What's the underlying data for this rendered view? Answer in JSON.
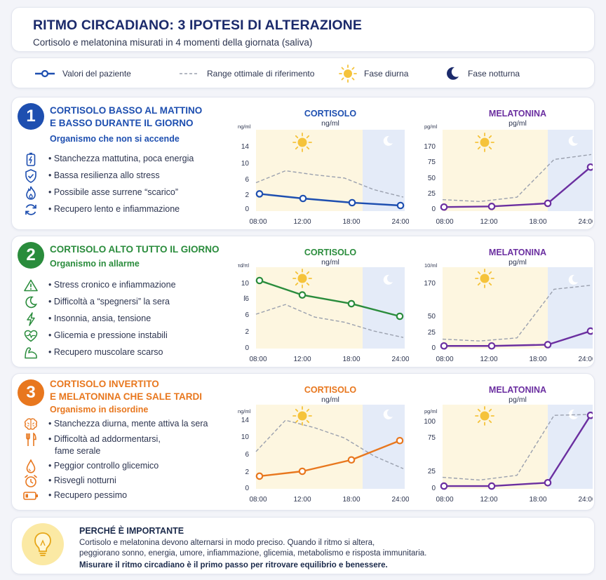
{
  "header": {
    "title": "RITMO CIRCADIANO: 3 IPOTESI DI ALTERAZIONE",
    "subtitle": "Cortisolo e melatonina misurati in 4 momenti della giornata (saliva)"
  },
  "legend": {
    "patient": "Valori del paziente",
    "reference": "Range ottimale di riferimento",
    "day": "Fase diurna",
    "night": "Fase notturna"
  },
  "colors": {
    "blue": "#1e4fb0",
    "green": "#2a8c3c",
    "orange": "#e8771e",
    "purple": "#6b2fa0",
    "day_bg": "#fdf6e0",
    "night_bg": "#e4ebf8",
    "reference": "#9aa0ae"
  },
  "sections": [
    {
      "number": "1",
      "title_lines": [
        "CORTISOLO BASSO AL MATTINO",
        "E BASSO DURANTE IL GIORNO"
      ],
      "subtitle": "Organismo che non si accende",
      "accent": "#1e4fb0",
      "bullets": [
        {
          "icon": "battery-icon",
          "text": "Stanchezza mattutina, poca energia"
        },
        {
          "icon": "shield-icon",
          "text": "Bassa resilienza allo stress"
        },
        {
          "icon": "flame-icon",
          "text": "Possibile asse surrene “scarico”"
        },
        {
          "icon": "recycle-icon",
          "text": "Recupero lento e infiammazione"
        }
      ]
    },
    {
      "number": "2",
      "title_lines": [
        "CORTISOLO ALTO TUTTO IL GIORNO"
      ],
      "subtitle": "Organismo in allarme",
      "accent": "#2a8c3c",
      "bullets": [
        {
          "icon": "warning-icon",
          "text": "Stress cronico e infiammazione"
        },
        {
          "icon": "moon-icon",
          "text": "Difficoltà a “spegnersi” la sera"
        },
        {
          "icon": "bolt-icon",
          "text": "Insonnia, ansia, tensione"
        },
        {
          "icon": "heart-pulse-icon",
          "text": "Glicemia e pressione instabili"
        },
        {
          "icon": "muscle-icon",
          "text": "Recupero muscolare scarso"
        }
      ]
    },
    {
      "number": "3",
      "title_lines": [
        "CORTISOLO INVERTITO",
        "E MELATONINA CHE SALE TARDI"
      ],
      "subtitle": "Organismo in disordine",
      "accent": "#e8771e",
      "bullets": [
        {
          "icon": "brain-icon",
          "text": "Stanchezza diurna, mente attiva la sera"
        },
        {
          "icon": "cutlery-icon",
          "text": "Difficoltà ad addormentarsi,",
          "text2": "fame serale"
        },
        {
          "icon": "drop-icon",
          "text": "Peggior controllo glicemico"
        },
        {
          "icon": "alarm-clock-icon",
          "text": "Risvegli notturni"
        },
        {
          "icon": "battery-low-icon",
          "text": "Recupero pessimo"
        }
      ]
    }
  ],
  "chart_data": [
    {
      "type": "line",
      "title": "CORTISOLO",
      "unit": "ng/ml",
      "ylabel": "ng/ml",
      "x": [
        "08:00",
        "12:00",
        "18:00",
        "24:00"
      ],
      "yticks": [
        "0",
        "2",
        "6",
        "10",
        "14"
      ],
      "series": [
        {
          "name": "Valori del paziente",
          "values": [
            2.1,
            1.4,
            0.8,
            0.4
          ]
        }
      ],
      "reference": [
        5.0,
        8.0,
        7.0,
        6.2,
        3.2,
        1.6
      ],
      "line_color": "#1e4fb0"
    },
    {
      "type": "line",
      "title": "MELATONINA",
      "unit": "pg/ml",
      "ylabel": "pg/ml",
      "x": [
        "08:00",
        "12:00",
        "18:00",
        "24:00"
      ],
      "yticks": [
        "0",
        "25",
        "50",
        "75",
        "170"
      ],
      "series": [
        {
          "name": "Valori del paziente",
          "values": [
            2,
            3,
            8,
            66
          ]
        }
      ],
      "reference": [
        14,
        11,
        18,
        78,
        86
      ],
      "line_color": "#6b2fa0"
    },
    {
      "type": "line",
      "title": "CORTISOLO",
      "unit": "ng/ml",
      "ylabel": "τd/πl",
      "x": [
        "08:00",
        "12:00",
        "18:00",
        "24:00"
      ],
      "yticks": [
        "0",
        "2",
        "6",
        "ſ6",
        "10"
      ],
      "series": [
        {
          "name": "Valori del paziente",
          "values": [
            10.5,
            8.4,
            7.3,
            5.5
          ]
        }
      ],
      "reference": [
        6.0,
        7.2,
        5.3,
        4.1,
        2.0,
        1.2
      ],
      "line_color": "#2a8c3c"
    },
    {
      "type": "line",
      "title": "MELATONINA",
      "unit": "pg/ml",
      "ylabel": "10/ml",
      "x": [
        "08:00",
        "12:00",
        "18:00",
        "24:00"
      ],
      "yticks": [
        "0",
        "25",
        "50",
        "170"
      ],
      "series": [
        {
          "name": "Valori del paziente",
          "values": [
            2,
            2,
            4,
            26
          ]
        }
      ],
      "reference": [
        13,
        10,
        15,
        70,
        73
      ],
      "line_color": "#6b2fa0"
    },
    {
      "type": "line",
      "title": "CORTISOLO",
      "unit": "ng/ml",
      "ylabel": "ng/ml",
      "x": [
        "08:00",
        "12:00",
        "18:00",
        "24:00"
      ],
      "yticks": [
        "0",
        "2",
        "6",
        "10",
        "14"
      ],
      "series": [
        {
          "name": "Valori del paziente",
          "values": [
            1.4,
            2.0,
            4.6,
            9.0
          ]
        }
      ],
      "reference": [
        6.5,
        13.8,
        12.0,
        9.6,
        5.5,
        2.6
      ],
      "line_color": "#e8771e"
    },
    {
      "type": "line",
      "title": "MELATONINA",
      "unit": "pg/ml",
      "ylabel": "pg/ml",
      "x": [
        "08:00",
        "12:00",
        "18:00",
        "24:00"
      ],
      "yticks": [
        "0",
        "25",
        "75",
        "100"
      ],
      "series": [
        {
          "name": "Valori del paziente",
          "values": [
            2,
            2,
            7,
            112
          ]
        }
      ],
      "reference": [
        15,
        11,
        18,
        112,
        114
      ],
      "line_color": "#6b2fa0"
    }
  ],
  "footer": {
    "title": "PERCHÉ È IMPORTANTE",
    "line1": "Cortisolo e melatonina devono alternarsi in modo preciso. Quando il ritmo si altera,",
    "line2": "peggiorano sonno, energia, umore, infiammazione, glicemia, metabolismo e risposta immunitaria.",
    "strong": "Misurare il ritmo circadiano è il primo passo per ritrovare equilibrio e benessere."
  }
}
